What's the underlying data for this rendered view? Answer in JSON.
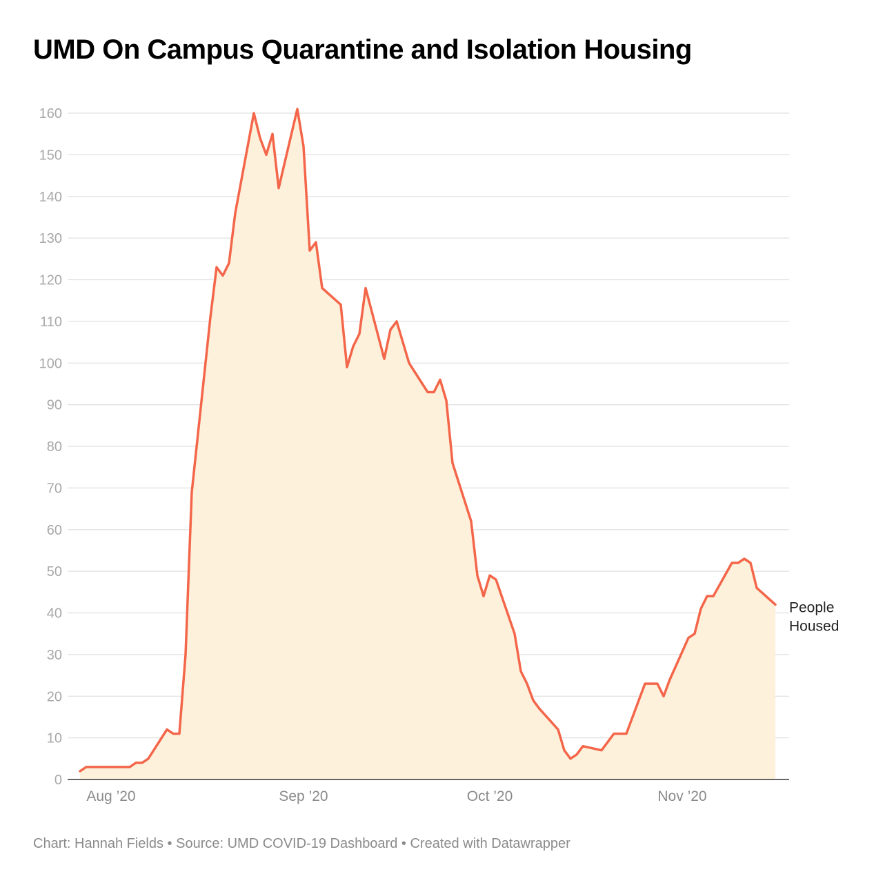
{
  "header": {
    "title": "UMD On Campus Quarantine and Isolation Housing"
  },
  "footer": {
    "credit": "Chart: Hannah Fields",
    "sep1": " • ",
    "source": "Source: UMD COVID-19 Dashboard",
    "sep2": " • ",
    "made_with": "Created with Datawrapper"
  },
  "chart_data": {
    "type": "area",
    "title": "UMD On Campus Quarantine and Isolation Housing",
    "xlabel": "",
    "ylabel": "",
    "x_ticks": [
      "Aug ’20",
      "Sep ’20",
      "Oct ’20",
      "Nov ’20"
    ],
    "y_ticks": [
      0,
      10,
      20,
      30,
      40,
      50,
      60,
      70,
      80,
      90,
      100,
      110,
      120,
      130,
      140,
      150,
      160
    ],
    "ylim": [
      0,
      160
    ],
    "grid": true,
    "colors": {
      "line": "#f4664a",
      "fill": "#fdf1dc",
      "grid": "#e0e0e0",
      "axis": "#333333"
    },
    "series": [
      {
        "name": "People Housed",
        "end_label": [
          "People",
          "Housed"
        ],
        "points": [
          [
            "Jul 27",
            2
          ],
          [
            "Jul 28",
            3
          ],
          [
            "Jul 29",
            3
          ],
          [
            "Jul 30",
            3
          ],
          [
            "Jul 31",
            3
          ],
          [
            "Aug 3",
            3
          ],
          [
            "Aug 4",
            3
          ],
          [
            "Aug 5",
            4
          ],
          [
            "Aug 6",
            4
          ],
          [
            "Aug 7",
            5
          ],
          [
            "Aug 10",
            12
          ],
          [
            "Aug 11",
            11
          ],
          [
            "Aug 12",
            11
          ],
          [
            "Aug 13",
            30
          ],
          [
            "Aug 14",
            69
          ],
          [
            "Aug 17",
            111
          ],
          [
            "Aug 18",
            123
          ],
          [
            "Aug 19",
            121
          ],
          [
            "Aug 20",
            124
          ],
          [
            "Aug 21",
            136
          ],
          [
            "Aug 24",
            160
          ],
          [
            "Aug 25",
            154
          ],
          [
            "Aug 26",
            150
          ],
          [
            "Aug 27",
            155
          ],
          [
            "Aug 28",
            142
          ],
          [
            "Aug 31",
            161
          ],
          [
            "Sep 1",
            152
          ],
          [
            "Sep 2",
            127
          ],
          [
            "Sep 3",
            129
          ],
          [
            "Sep 4",
            118
          ],
          [
            "Sep 7",
            114
          ],
          [
            "Sep 8",
            99
          ],
          [
            "Sep 9",
            104
          ],
          [
            "Sep 10",
            107
          ],
          [
            "Sep 11",
            118
          ],
          [
            "Sep 14",
            101
          ],
          [
            "Sep 15",
            108
          ],
          [
            "Sep 16",
            110
          ],
          [
            "Sep 17",
            105
          ],
          [
            "Sep 18",
            100
          ],
          [
            "Sep 21",
            93
          ],
          [
            "Sep 22",
            93
          ],
          [
            "Sep 23",
            96
          ],
          [
            "Sep 24",
            91
          ],
          [
            "Sep 25",
            76
          ],
          [
            "Sep 28",
            62
          ],
          [
            "Sep 29",
            49
          ],
          [
            "Sep 30",
            44
          ],
          [
            "Oct 1",
            49
          ],
          [
            "Oct 2",
            48
          ],
          [
            "Oct 5",
            35
          ],
          [
            "Oct 6",
            26
          ],
          [
            "Oct 7",
            23
          ],
          [
            "Oct 8",
            19
          ],
          [
            "Oct 9",
            17
          ],
          [
            "Oct 12",
            12
          ],
          [
            "Oct 13",
            7
          ],
          [
            "Oct 14",
            5
          ],
          [
            "Oct 15",
            6
          ],
          [
            "Oct 16",
            8
          ],
          [
            "Oct 19",
            7
          ],
          [
            "Oct 20",
            9
          ],
          [
            "Oct 21",
            11
          ],
          [
            "Oct 22",
            11
          ],
          [
            "Oct 23",
            11
          ],
          [
            "Oct 26",
            23
          ],
          [
            "Oct 27",
            23
          ],
          [
            "Oct 28",
            23
          ],
          [
            "Oct 29",
            20
          ],
          [
            "Oct 30",
            24
          ],
          [
            "Nov 2",
            34
          ],
          [
            "Nov 3",
            35
          ],
          [
            "Nov 4",
            41
          ],
          [
            "Nov 5",
            44
          ],
          [
            "Nov 6",
            44
          ],
          [
            "Nov 9",
            52
          ],
          [
            "Nov 10",
            52
          ],
          [
            "Nov 11",
            53
          ],
          [
            "Nov 12",
            52
          ],
          [
            "Nov 13",
            46
          ],
          [
            "Nov 16",
            42
          ]
        ]
      }
    ]
  }
}
